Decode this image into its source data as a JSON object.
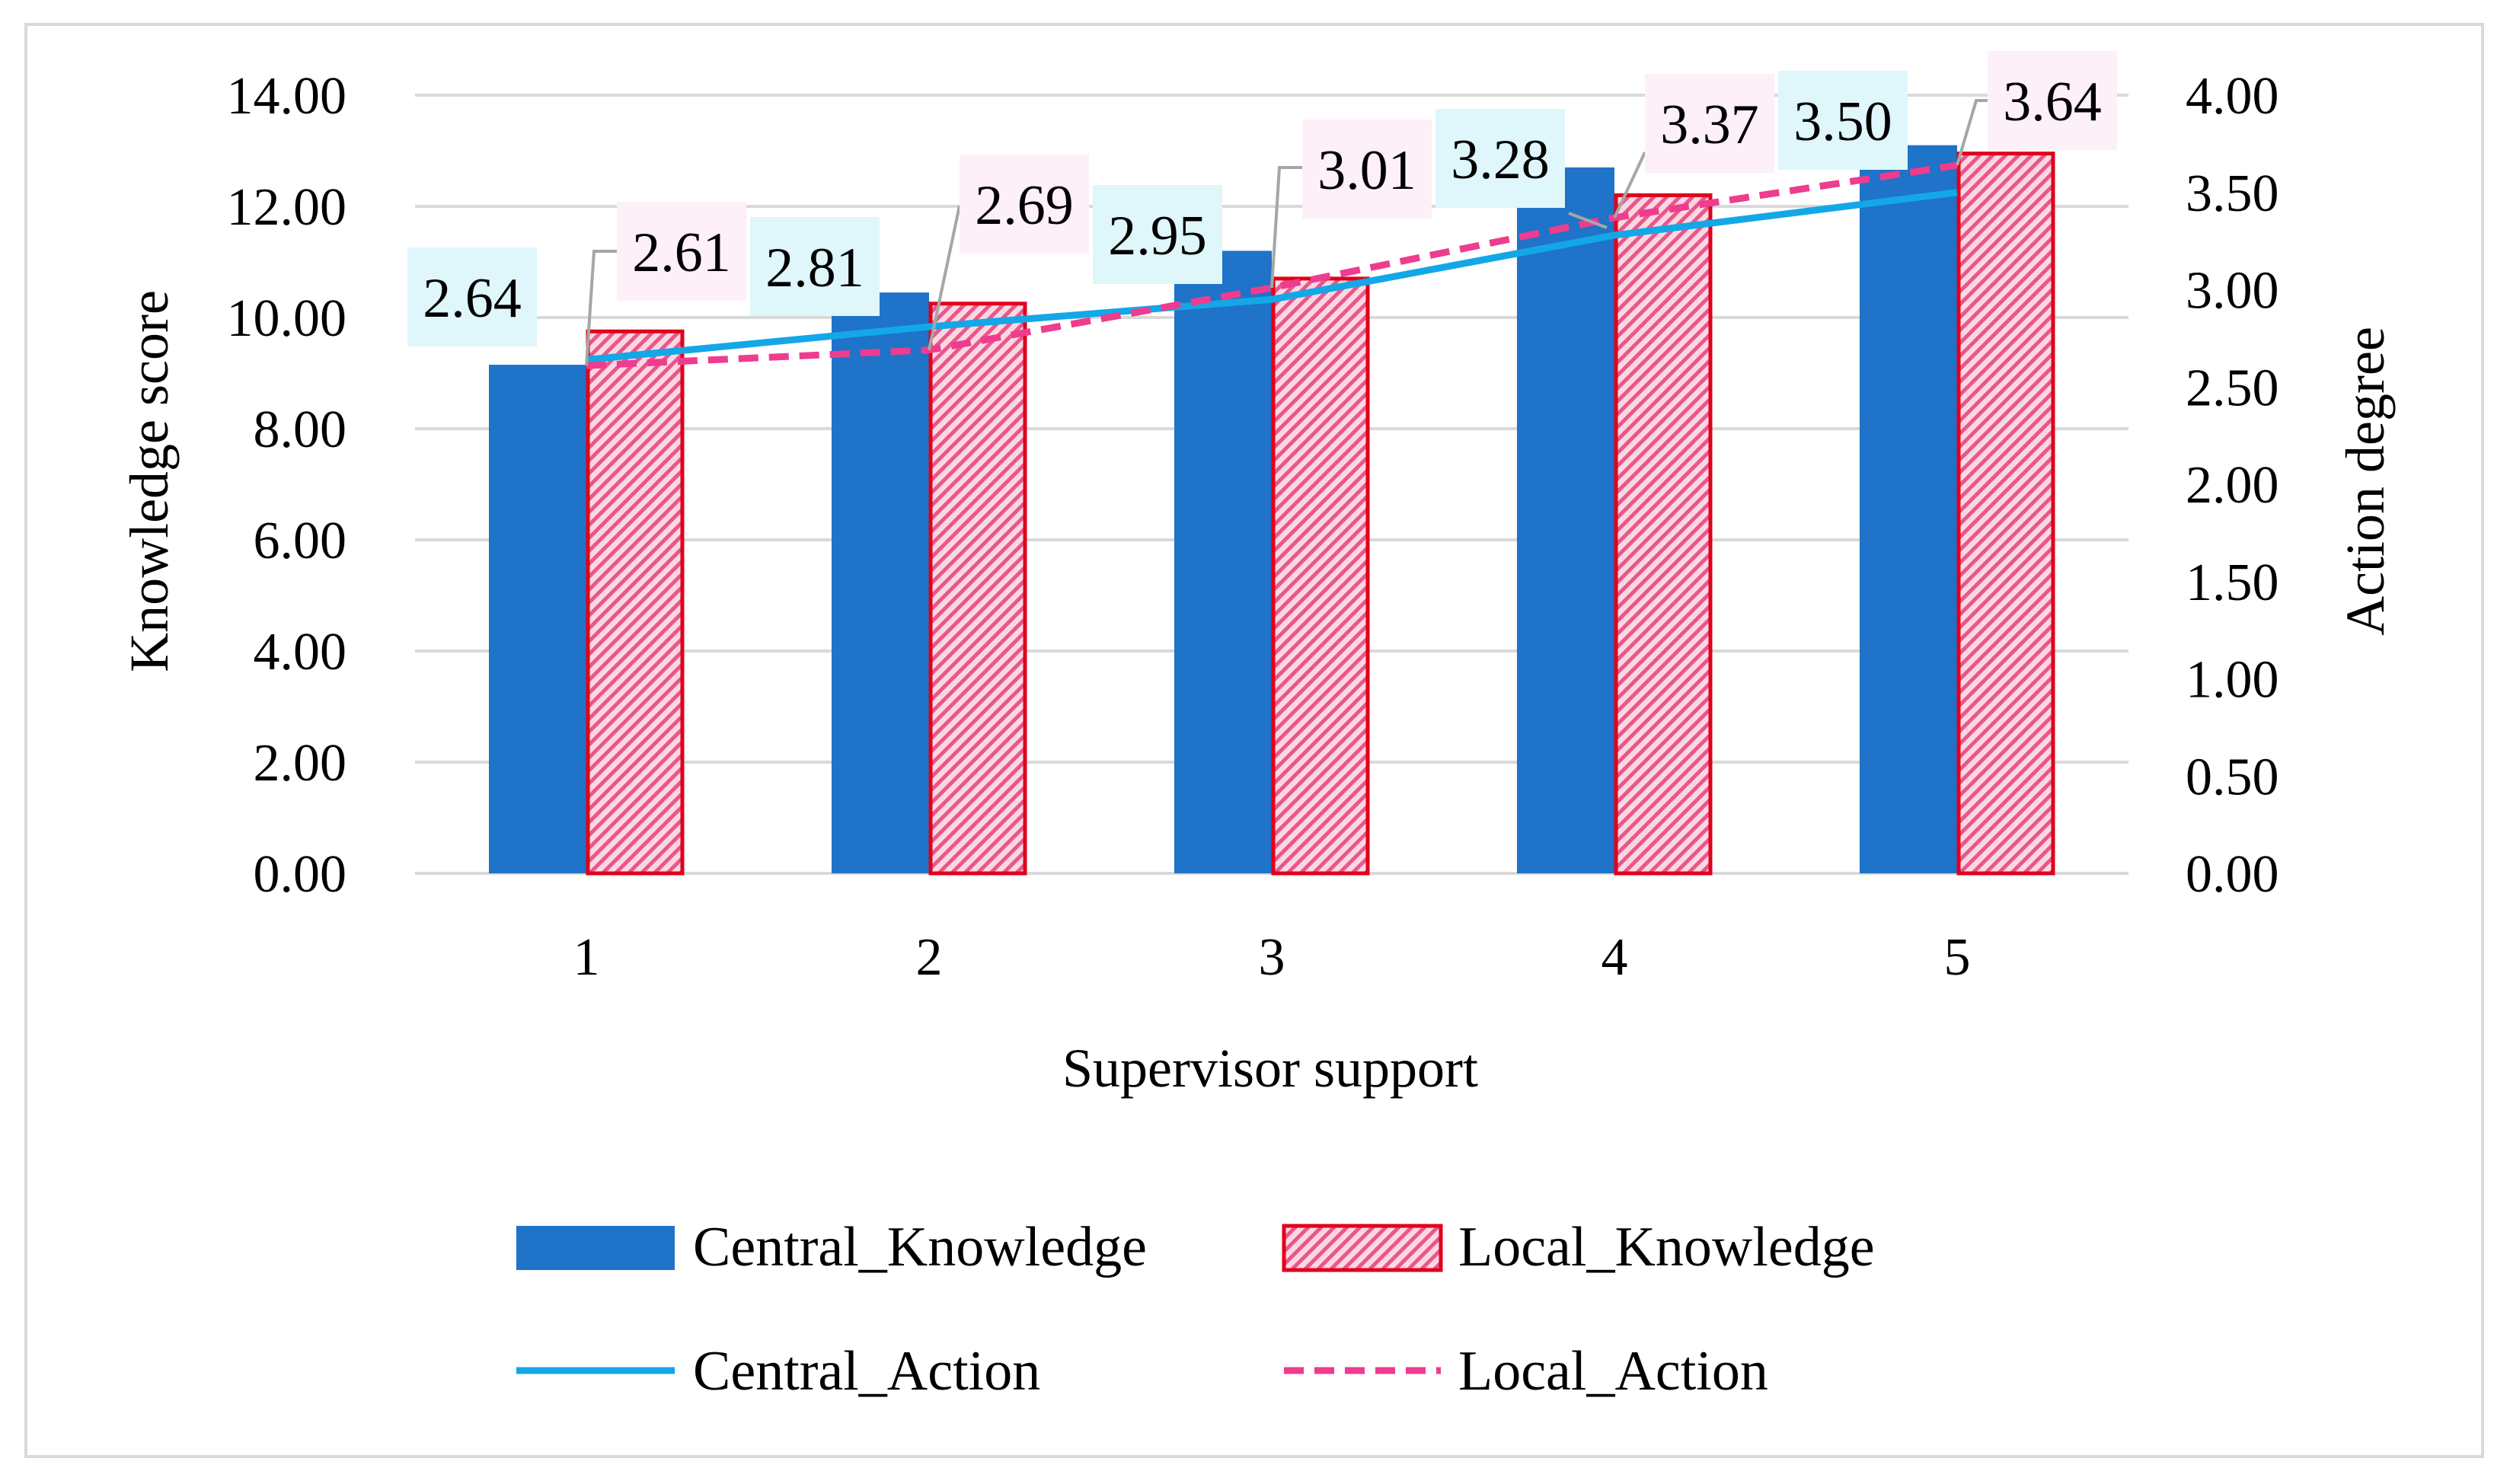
{
  "chart_data": {
    "type": "bar",
    "categories": [
      "1",
      "2",
      "3",
      "4",
      "5"
    ],
    "xlabel": "Supervisor support",
    "ylabel": "Knowledge score",
    "y2label": "Action degree",
    "ylim": [
      0,
      14
    ],
    "y2lim": [
      0,
      4
    ],
    "yticks": [
      "0.00",
      "2.00",
      "4.00",
      "6.00",
      "8.00",
      "10.00",
      "12.00",
      "14.00"
    ],
    "y2ticks": [
      "0.00",
      "0.50",
      "1.00",
      "1.50",
      "2.00",
      "2.50",
      "3.00",
      "3.50",
      "4.00"
    ],
    "grid": true,
    "legend_position": "bottom",
    "series": [
      {
        "name": "Central_Knowledge",
        "kind": "bar",
        "axis": "left",
        "color": "#1f73c8",
        "values": [
          9.15,
          10.45,
          11.2,
          12.7,
          13.1
        ]
      },
      {
        "name": "Local_Knowledge",
        "kind": "bar",
        "axis": "left",
        "color": "#e8859e",
        "edge_color": "#e0001b",
        "pattern": "diagonal-hatch",
        "values": [
          9.75,
          10.25,
          10.7,
          12.2,
          12.95
        ]
      },
      {
        "name": "Central_Action",
        "kind": "line",
        "axis": "right",
        "color": "#13a7e8",
        "values": [
          2.64,
          2.81,
          2.95,
          3.28,
          3.5
        ],
        "labels": [
          "2.64",
          "2.81",
          "2.95",
          "3.28",
          "3.50"
        ],
        "label_bg": "#dff6fb"
      },
      {
        "name": "Local_Action",
        "kind": "line",
        "axis": "right",
        "color": "#ee3c8f",
        "dashed": true,
        "values": [
          2.61,
          2.69,
          3.01,
          3.37,
          3.64
        ],
        "labels": [
          "2.61",
          "2.69",
          "3.01",
          "3.37",
          "3.64"
        ],
        "label_bg": "#fdf0f8"
      }
    ]
  }
}
